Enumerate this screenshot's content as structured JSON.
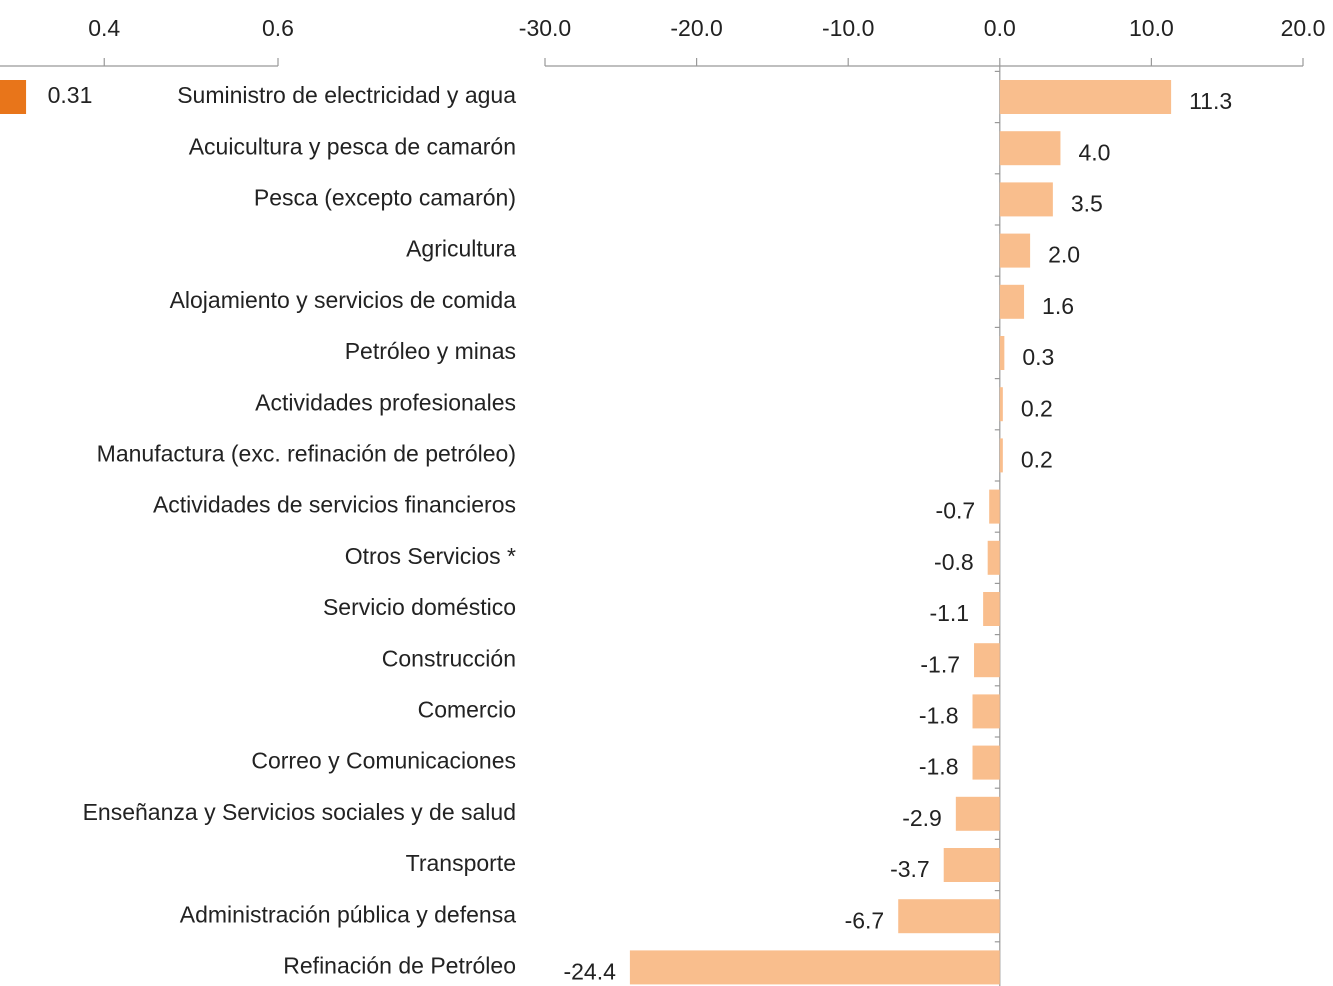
{
  "chart_data": [
    {
      "type": "hbar",
      "values": [
        0.31
      ],
      "value_labels": [
        "0.31"
      ],
      "color": "#e8751a",
      "xlim": [
        0.28,
        0.6
      ],
      "xticks": [
        0.4,
        0.6
      ]
    },
    {
      "type": "hbar",
      "categories": [
        "Suministro de electricidad y agua",
        "Acuicultura y pesca de camarón",
        "Pesca (excepto camarón)",
        "Agricultura",
        "Alojamiento y servicios de comida",
        "Petróleo y minas",
        "Actividades profesionales",
        "Manufactura (exc. refinación de petróleo)",
        "Actividades de servicios financieros",
        "Otros Servicios *",
        "Servicio doméstico",
        "Construcción",
        "Comercio",
        "Correo y Comunicaciones",
        "Enseñanza  y Servicios sociales y de salud",
        "Transporte",
        "Administración pública y defensa",
        "Refinación de Petróleo"
      ],
      "values": [
        11.3,
        4.0,
        3.5,
        2.0,
        1.6,
        0.3,
        0.2,
        0.2,
        -0.7,
        -0.8,
        -1.1,
        -1.7,
        -1.8,
        -1.8,
        -2.9,
        -3.7,
        -6.7,
        -24.4
      ],
      "value_labels": [
        "11.3",
        "4.0",
        "3.5",
        "2.0",
        "1.6",
        "0.3",
        "0.2",
        "0.2",
        "-0.7",
        "-0.8",
        "-1.1",
        "-1.7",
        "-1.8",
        "-1.8",
        "-2.9",
        "-3.7",
        "-6.7",
        "-24.4"
      ],
      "color": "#f9be8d",
      "xlim": [
        -30,
        20
      ],
      "xticks": [
        {
          "value": -30,
          "label": "-30.0"
        },
        {
          "value": -20,
          "label": "-20.0"
        },
        {
          "value": -10,
          "label": "-10.0"
        },
        {
          "value": 0,
          "label": "0.0"
        },
        {
          "value": 10,
          "label": "10.0"
        },
        {
          "value": 20,
          "label": "20.0"
        }
      ]
    }
  ]
}
